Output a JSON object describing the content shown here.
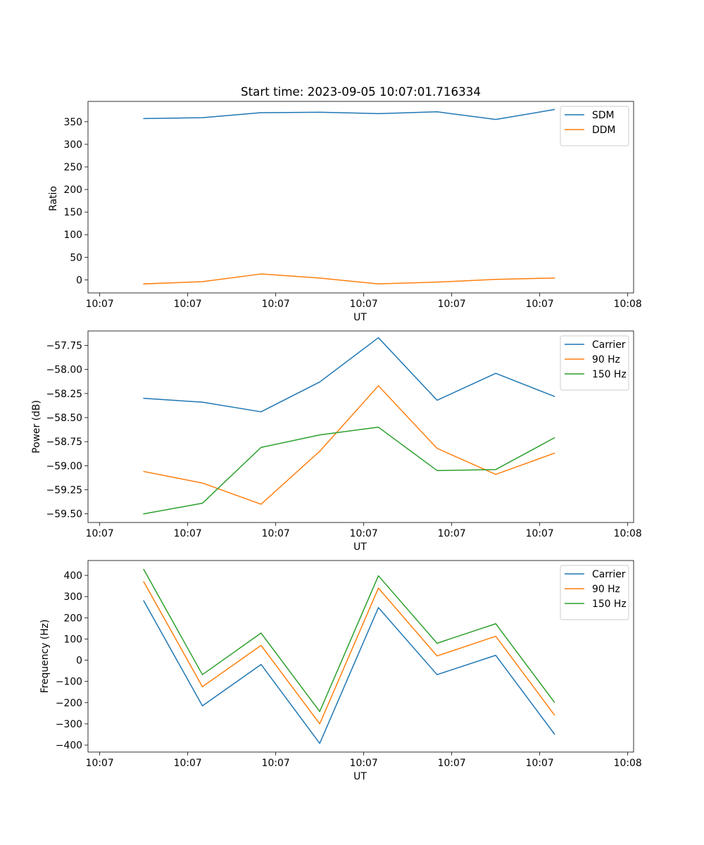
{
  "chart_data": [
    {
      "type": "line",
      "title": "Start time: 2023-09-05 10:07:01.716334",
      "xlabel": "UT",
      "ylabel": "Ratio",
      "x": [
        0.75,
        1.75,
        2.75,
        3.75,
        4.75,
        5.75,
        6.75,
        7.75
      ],
      "xlim": [
        -0.2,
        9.1
      ],
      "xticks": [
        0,
        1.5,
        3,
        4.5,
        6,
        7.5,
        9
      ],
      "xtick_labels": [
        "10:07",
        "10:07",
        "10:07",
        "10:07",
        "10:07",
        "10:07",
        "10:08"
      ],
      "ylim": [
        -29,
        395
      ],
      "yticks": [
        0,
        50,
        100,
        150,
        200,
        250,
        300,
        350
      ],
      "ytick_labels": [
        "0",
        "50",
        "100",
        "150",
        "200",
        "250",
        "300",
        "350"
      ],
      "legend": "upper right",
      "series": [
        {
          "name": "SDM",
          "color": "#1f77b4",
          "values": [
            357,
            359,
            370,
            371,
            368,
            372,
            355,
            377
          ]
        },
        {
          "name": "DDM",
          "color": "#ff7f0e",
          "values": [
            -9,
            -4,
            13,
            4,
            -9,
            -5,
            1,
            4
          ]
        }
      ]
    },
    {
      "type": "line",
      "title": "",
      "xlabel": "UT",
      "ylabel": "Power (dB)",
      "x": [
        0.75,
        1.75,
        2.75,
        3.75,
        4.75,
        5.75,
        6.75,
        7.75
      ],
      "xlim": [
        -0.2,
        9.1
      ],
      "xticks": [
        0,
        1.5,
        3,
        4.5,
        6,
        7.5,
        9
      ],
      "xtick_labels": [
        "10:07",
        "10:07",
        "10:07",
        "10:07",
        "10:07",
        "10:07",
        "10:08"
      ],
      "ylim": [
        -59.59,
        -57.6
      ],
      "yticks": [
        -59.5,
        -59.25,
        -59.0,
        -58.75,
        -58.5,
        -58.25,
        -58.0,
        -57.75
      ],
      "ytick_labels": [
        "−59.50",
        "−59.25",
        "−59.00",
        "−58.75",
        "−58.50",
        "−58.25",
        "−58.00",
        "−57.75"
      ],
      "legend": "upper right",
      "series": [
        {
          "name": "Carrier",
          "color": "#1f77b4",
          "values": [
            -58.3,
            -58.34,
            -58.44,
            -58.13,
            -57.67,
            -58.32,
            -58.04,
            -58.28
          ]
        },
        {
          "name": "90 Hz",
          "color": "#ff7f0e",
          "values": [
            -59.06,
            -59.18,
            -59.4,
            -58.85,
            -58.17,
            -58.82,
            -59.09,
            -58.87
          ]
        },
        {
          "name": "150 Hz",
          "color": "#2ca02c",
          "values": [
            -59.5,
            -59.39,
            -58.81,
            -58.68,
            -58.6,
            -59.05,
            -59.04,
            -58.71
          ]
        }
      ]
    },
    {
      "type": "line",
      "title": "",
      "xlabel": "UT",
      "ylabel": "Frequency (Hz)",
      "x": [
        0.75,
        1.75,
        2.75,
        3.75,
        4.75,
        5.75,
        6.75,
        7.75
      ],
      "xlim": [
        -0.2,
        9.1
      ],
      "xticks": [
        0,
        1.5,
        3,
        4.5,
        6,
        7.5,
        9
      ],
      "xtick_labels": [
        "10:07",
        "10:07",
        "10:07",
        "10:07",
        "10:07",
        "10:07",
        "10:08"
      ],
      "ylim": [
        -433,
        470
      ],
      "yticks": [
        -400,
        -300,
        -200,
        -100,
        0,
        100,
        200,
        300,
        400
      ],
      "ytick_labels": [
        "−400",
        "−300",
        "−200",
        "−100",
        "0",
        "100",
        "200",
        "300",
        "400"
      ],
      "legend": "upper right",
      "series": [
        {
          "name": "Carrier",
          "color": "#1f77b4",
          "values": [
            280,
            -215,
            -20,
            -392,
            248,
            -68,
            23,
            -348
          ]
        },
        {
          "name": "90 Hz",
          "color": "#ff7f0e",
          "values": [
            370,
            -125,
            70,
            -300,
            340,
            20,
            113,
            -258
          ]
        },
        {
          "name": "150 Hz",
          "color": "#2ca02c",
          "values": [
            428,
            -68,
            128,
            -242,
            398,
            80,
            172,
            -198
          ]
        }
      ]
    }
  ]
}
